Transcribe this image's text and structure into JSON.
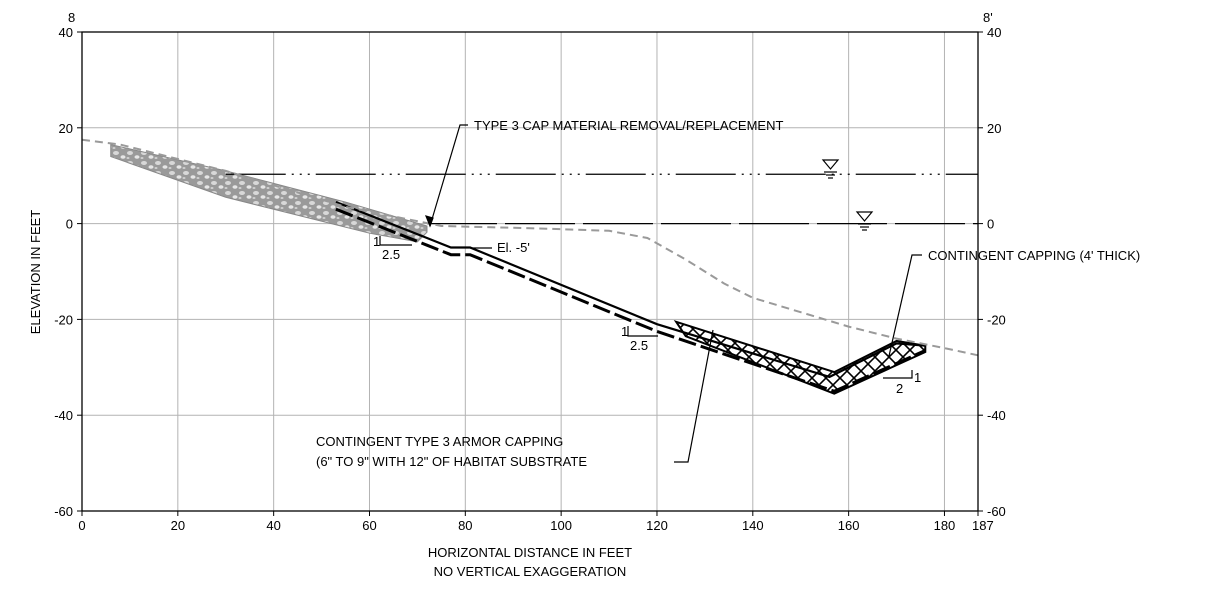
{
  "section": {
    "left_label": "8",
    "right_label": "8'"
  },
  "axes": {
    "x_title_line1": "HORIZONTAL DISTANCE IN FEET",
    "x_title_line2": "NO VERTICAL EXAGGERATION",
    "y_title": "ELEVATION IN FEET",
    "x_ticks": [
      "0",
      "20",
      "40",
      "60",
      "80",
      "100",
      "120",
      "140",
      "160",
      "180",
      "187"
    ],
    "y_ticks": [
      "40",
      "20",
      "0",
      "-20",
      "-40",
      "-60"
    ]
  },
  "annotations": {
    "type3_removal": "TYPE 3 CAP MATERIAL REMOVAL/REPLACEMENT",
    "contingent_capping": "CONTINGENT CAPPING (4' THICK)",
    "armor_line1": "CONTINGENT TYPE 3 ARMOR CAPPING",
    "armor_line2": "(6\" TO 9\" WITH 12\" OF HABITAT SUBSTRATE",
    "el_label": "El. -5'",
    "slope1_rise": "1",
    "slope1_run": "2.5",
    "slope2_rise": "1",
    "slope2_run": "2.5",
    "slope3_rise": "1",
    "slope3_run": "2"
  },
  "chart_data": {
    "type": "line",
    "xlabel": "HORIZONTAL DISTANCE IN FEET",
    "ylabel": "ELEVATION IN FEET",
    "xlim": [
      0,
      187
    ],
    "ylim": [
      -60,
      40
    ],
    "x_ticks": [
      0,
      20,
      40,
      60,
      80,
      100,
      120,
      140,
      160,
      180,
      187
    ],
    "y_ticks": [
      40,
      20,
      0,
      -20,
      -40,
      -60
    ],
    "grid": true,
    "water_levels": [
      10.3,
      0
    ],
    "existing_grade": {
      "x": [
        0,
        8,
        30,
        55,
        75,
        95,
        110,
        118,
        126,
        134,
        140,
        150,
        160,
        170,
        180,
        187
      ],
      "y": [
        17.5,
        16.5,
        11,
        3.5,
        -0.5,
        -1,
        -1.5,
        -3,
        -7.5,
        -12.5,
        -15.5,
        -18.5,
        -21.5,
        -24,
        -26,
        -27.5
      ]
    },
    "excavation_profile": {
      "x": [
        53,
        72,
        77,
        81,
        120,
        156,
        170,
        176
      ],
      "y": [
        4.5,
        -3,
        -5,
        -5,
        -21,
        -32,
        -25,
        -25.5
      ]
    },
    "capping_bottom": {
      "x": [
        53,
        72,
        77,
        81,
        120,
        157,
        176
      ],
      "y": [
        3,
        -4.5,
        -6.5,
        -6.5,
        -22.5,
        -35,
        -26.5
      ]
    },
    "armor_zone_top": {
      "x": [
        124,
        157,
        170,
        176
      ],
      "y": [
        -20.5,
        -31,
        -24.5,
        -25.5
      ]
    },
    "riprap_zone": {
      "x_start": 6,
      "x_end": 72
    }
  }
}
